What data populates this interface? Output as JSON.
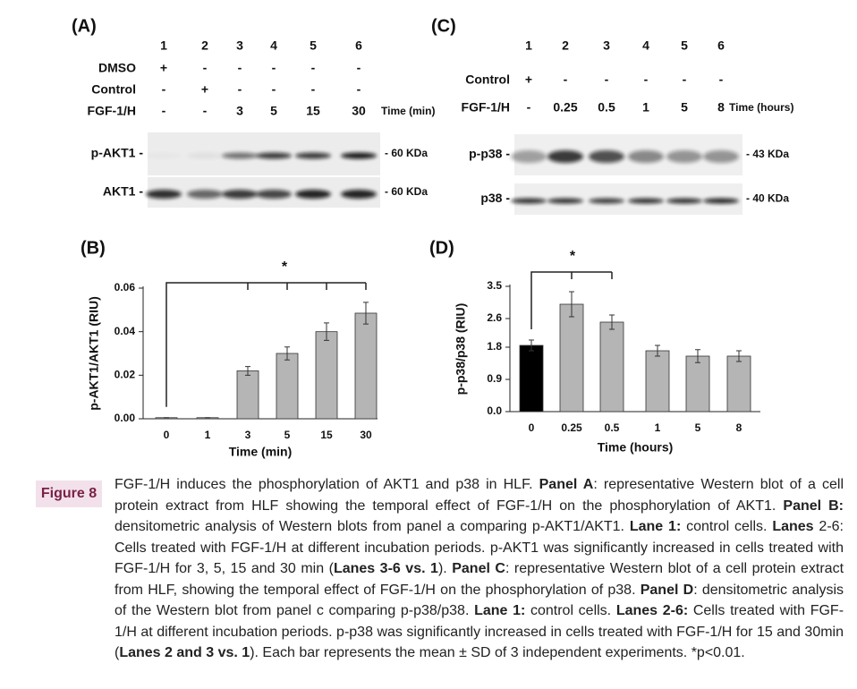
{
  "blot_a": {
    "label": "(A)",
    "lanes": [
      "1",
      "2",
      "3",
      "4",
      "5",
      "6"
    ],
    "conditions": [
      {
        "name": "DMSO",
        "values": [
          "+",
          "-",
          "-",
          "-",
          "-",
          "-"
        ]
      },
      {
        "name": "Control",
        "values": [
          "-",
          "+",
          "-",
          "-",
          "-",
          "-"
        ]
      },
      {
        "name": "FGF-1/H",
        "values": [
          "-",
          "-",
          "3",
          "5",
          "15",
          "30"
        ]
      }
    ],
    "time_unit": "Time (min)",
    "blots": [
      {
        "name": "p-AKT1 -",
        "size": "- 60 KDa"
      },
      {
        "name": "AKT1 -",
        "size": "- 60 KDa"
      }
    ]
  },
  "blot_c": {
    "label": "(C)",
    "lanes": [
      "1",
      "2",
      "3",
      "4",
      "5",
      "6"
    ],
    "conditions": [
      {
        "name": "Control",
        "values": [
          "+",
          "-",
          "-",
          "-",
          "-",
          "-"
        ]
      },
      {
        "name": "FGF-1/H",
        "values": [
          "-",
          "0.25",
          "0.5",
          "1",
          "5",
          "8"
        ]
      }
    ],
    "time_unit": "Time (hours)",
    "blots": [
      {
        "name": "p-p38 -",
        "size": "- 43 KDa"
      },
      {
        "name": "p38 -",
        "size": "- 40 KDa"
      }
    ]
  },
  "chart_data": [
    {
      "type": "bar",
      "label": "(B)",
      "x_label": "Time (min)",
      "y_label": "p-AKT1/AKT1 (RIU)",
      "categories": [
        "0",
        "1",
        "3",
        "5",
        "15",
        "30"
      ],
      "values": [
        0.0005,
        0.0005,
        0.022,
        0.03,
        0.04,
        0.0485
      ],
      "errors": [
        0,
        0,
        0.002,
        0.003,
        0.004,
        0.005
      ],
      "colors": [
        "#b5b5b5",
        "#b5b5b5",
        "#b5b5b5",
        "#b5b5b5",
        "#b5b5b5",
        "#b5b5b5"
      ],
      "ylim": [
        0,
        0.06
      ],
      "yticks": [
        {
          "value": 0,
          "label": "0.00"
        },
        {
          "value": 0.02,
          "label": "0.02"
        },
        {
          "value": 0.04,
          "label": "0.04"
        },
        {
          "value": 0.06,
          "label": "0.06"
        }
      ],
      "significance": "*"
    },
    {
      "type": "bar",
      "label": "(D)",
      "x_label": "Time (hours)",
      "y_label": "p-p38/p38 (RIU)",
      "categories": [
        "0",
        "0.25",
        "0.5",
        "1",
        "5",
        "8"
      ],
      "values": [
        1.85,
        3.0,
        2.5,
        1.7,
        1.55,
        1.55
      ],
      "errors": [
        0.15,
        0.35,
        0.2,
        0.15,
        0.18,
        0.15
      ],
      "colors": [
        "#000000",
        "#b5b5b5",
        "#b5b5b5",
        "#b5b5b5",
        "#b5b5b5",
        "#b5b5b5"
      ],
      "ylim": [
        0,
        3.5
      ],
      "yticks": [
        {
          "value": 0,
          "label": "0.0"
        },
        0.9,
        1.8,
        2.6,
        3.5
      ],
      "significance": "*"
    }
  ],
  "caption": {
    "label": "Figure 8",
    "parts": [
      {
        "text": "FGF-1/H induces the phosphorylation of AKT1 and p38 in HLF. ",
        "bold": false
      },
      {
        "text": "Panel A",
        "bold": true
      },
      {
        "text": ": representative Western blot of a cell protein extract from HLF showing the temporal effect of FGF-1/H on the phosphorylation of AKT1. ",
        "bold": false
      },
      {
        "text": "Panel B:",
        "bold": true
      },
      {
        "text": " densitometric analysis of Western blots from panel a comparing p-AKT1/AKT1. ",
        "bold": false
      },
      {
        "text": "Lane 1:",
        "bold": true
      },
      {
        "text": " control cells. ",
        "bold": false
      },
      {
        "text": "Lanes",
        "bold": true
      },
      {
        "text": " 2-6: Cells treated with FGF-1/H at different incubation periods. p-AKT1 was significantly increased in cells treated with FGF-1/H for 3, 5, 15 and 30 min (",
        "bold": false
      },
      {
        "text": "Lanes 3-6 vs. 1",
        "bold": true
      },
      {
        "text": "). ",
        "bold": false
      },
      {
        "text": "Panel C",
        "bold": true
      },
      {
        "text": ": representative Western blot of a cell protein extract from HLF, showing the temporal effect of FGF-1/H on the phosphorylation of p38. ",
        "bold": false
      },
      {
        "text": "Panel D",
        "bold": true
      },
      {
        "text": ": densitometric analysis of the Western blot from panel c comparing p-p38/p38. ",
        "bold": false
      },
      {
        "text": "Lane 1:",
        "bold": true
      },
      {
        "text": " control cells. ",
        "bold": false
      },
      {
        "text": "Lanes 2-6:",
        "bold": true
      },
      {
        "text": " Cells treated with FGF-1/H at different incubation periods. p-p38 was significantly increased in cells treated with FGF-1/H for 15 and 30min (",
        "bold": false
      },
      {
        "text": "Lanes 2 and 3 vs. 1",
        "bold": true
      },
      {
        "text": "). Each bar represents the mean ± SD of 3 independent experiments. *p<0.01.",
        "bold": false
      }
    ]
  }
}
